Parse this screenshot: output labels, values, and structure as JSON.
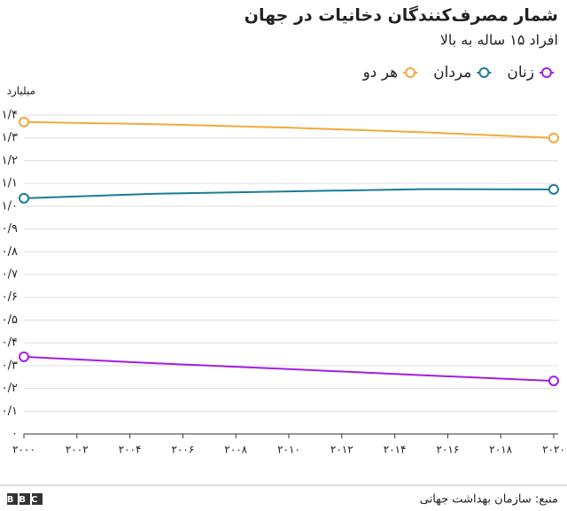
{
  "chart_data": {
    "type": "line",
    "title": "شمار مصرف‌کنندگان دخانیات در جهان",
    "subtitle": "افراد ۱۵ ساله به بالا",
    "y_label": "میلیارد",
    "source": "منبع: سازمان بهداشت جهانی",
    "logo": "BBC",
    "x": [
      2000,
      2005,
      2010,
      2015,
      2020
    ],
    "series": [
      {
        "name": "زنان",
        "color": "#a01ee6",
        "values": [
          0.339,
          0.31,
          0.285,
          0.258,
          0.233
        ]
      },
      {
        "name": "مردان",
        "color": "#1b7b97",
        "values": [
          1.035,
          1.055,
          1.065,
          1.075,
          1.074
        ]
      },
      {
        "name": "هر دو",
        "color": "#f2a93b",
        "values": [
          1.37,
          1.36,
          1.345,
          1.325,
          1.3
        ]
      }
    ],
    "xlim": [
      2000,
      2020
    ],
    "xticks": [
      {
        "value": 2000,
        "label": "۲۰۰۰"
      },
      {
        "value": 2002,
        "label": "۲۰۰۲"
      },
      {
        "value": 2004,
        "label": "۲۰۰۴"
      },
      {
        "value": 2006,
        "label": "۲۰۰۶"
      },
      {
        "value": 2008,
        "label": "۲۰۰۸"
      },
      {
        "value": 2010,
        "label": "۲۰۱۰"
      },
      {
        "value": 2012,
        "label": "۲۰۱۲"
      },
      {
        "value": 2014,
        "label": "۲۰۱۴"
      },
      {
        "value": 2016,
        "label": "۲۰۱۶"
      },
      {
        "value": 2018,
        "label": "۲۰۱۸"
      },
      {
        "value": 2020,
        "label": "۲۰۲۰"
      }
    ],
    "ylim": [
      0,
      1.4
    ],
    "yticks": [
      {
        "value": 0,
        "label": "۰"
      },
      {
        "value": 0.1,
        "label": "۰/۱"
      },
      {
        "value": 0.2,
        "label": "۰/۲"
      },
      {
        "value": 0.3,
        "label": "۰/۳"
      },
      {
        "value": 0.4,
        "label": "۰/۴"
      },
      {
        "value": 0.5,
        "label": "۰/۵"
      },
      {
        "value": 0.6,
        "label": "۰/۶"
      },
      {
        "value": 0.7,
        "label": "۰/۷"
      },
      {
        "value": 0.8,
        "label": "۰/۸"
      },
      {
        "value": 0.9,
        "label": "۰/۹"
      },
      {
        "value": 1.0,
        "label": "۱/۰"
      },
      {
        "value": 1.1,
        "label": "۱/۱"
      },
      {
        "value": 1.2,
        "label": "۱/۲"
      },
      {
        "value": 1.3,
        "label": "۱/۳"
      },
      {
        "value": 1.4,
        "label": "۱/۴"
      }
    ],
    "grid": true
  }
}
